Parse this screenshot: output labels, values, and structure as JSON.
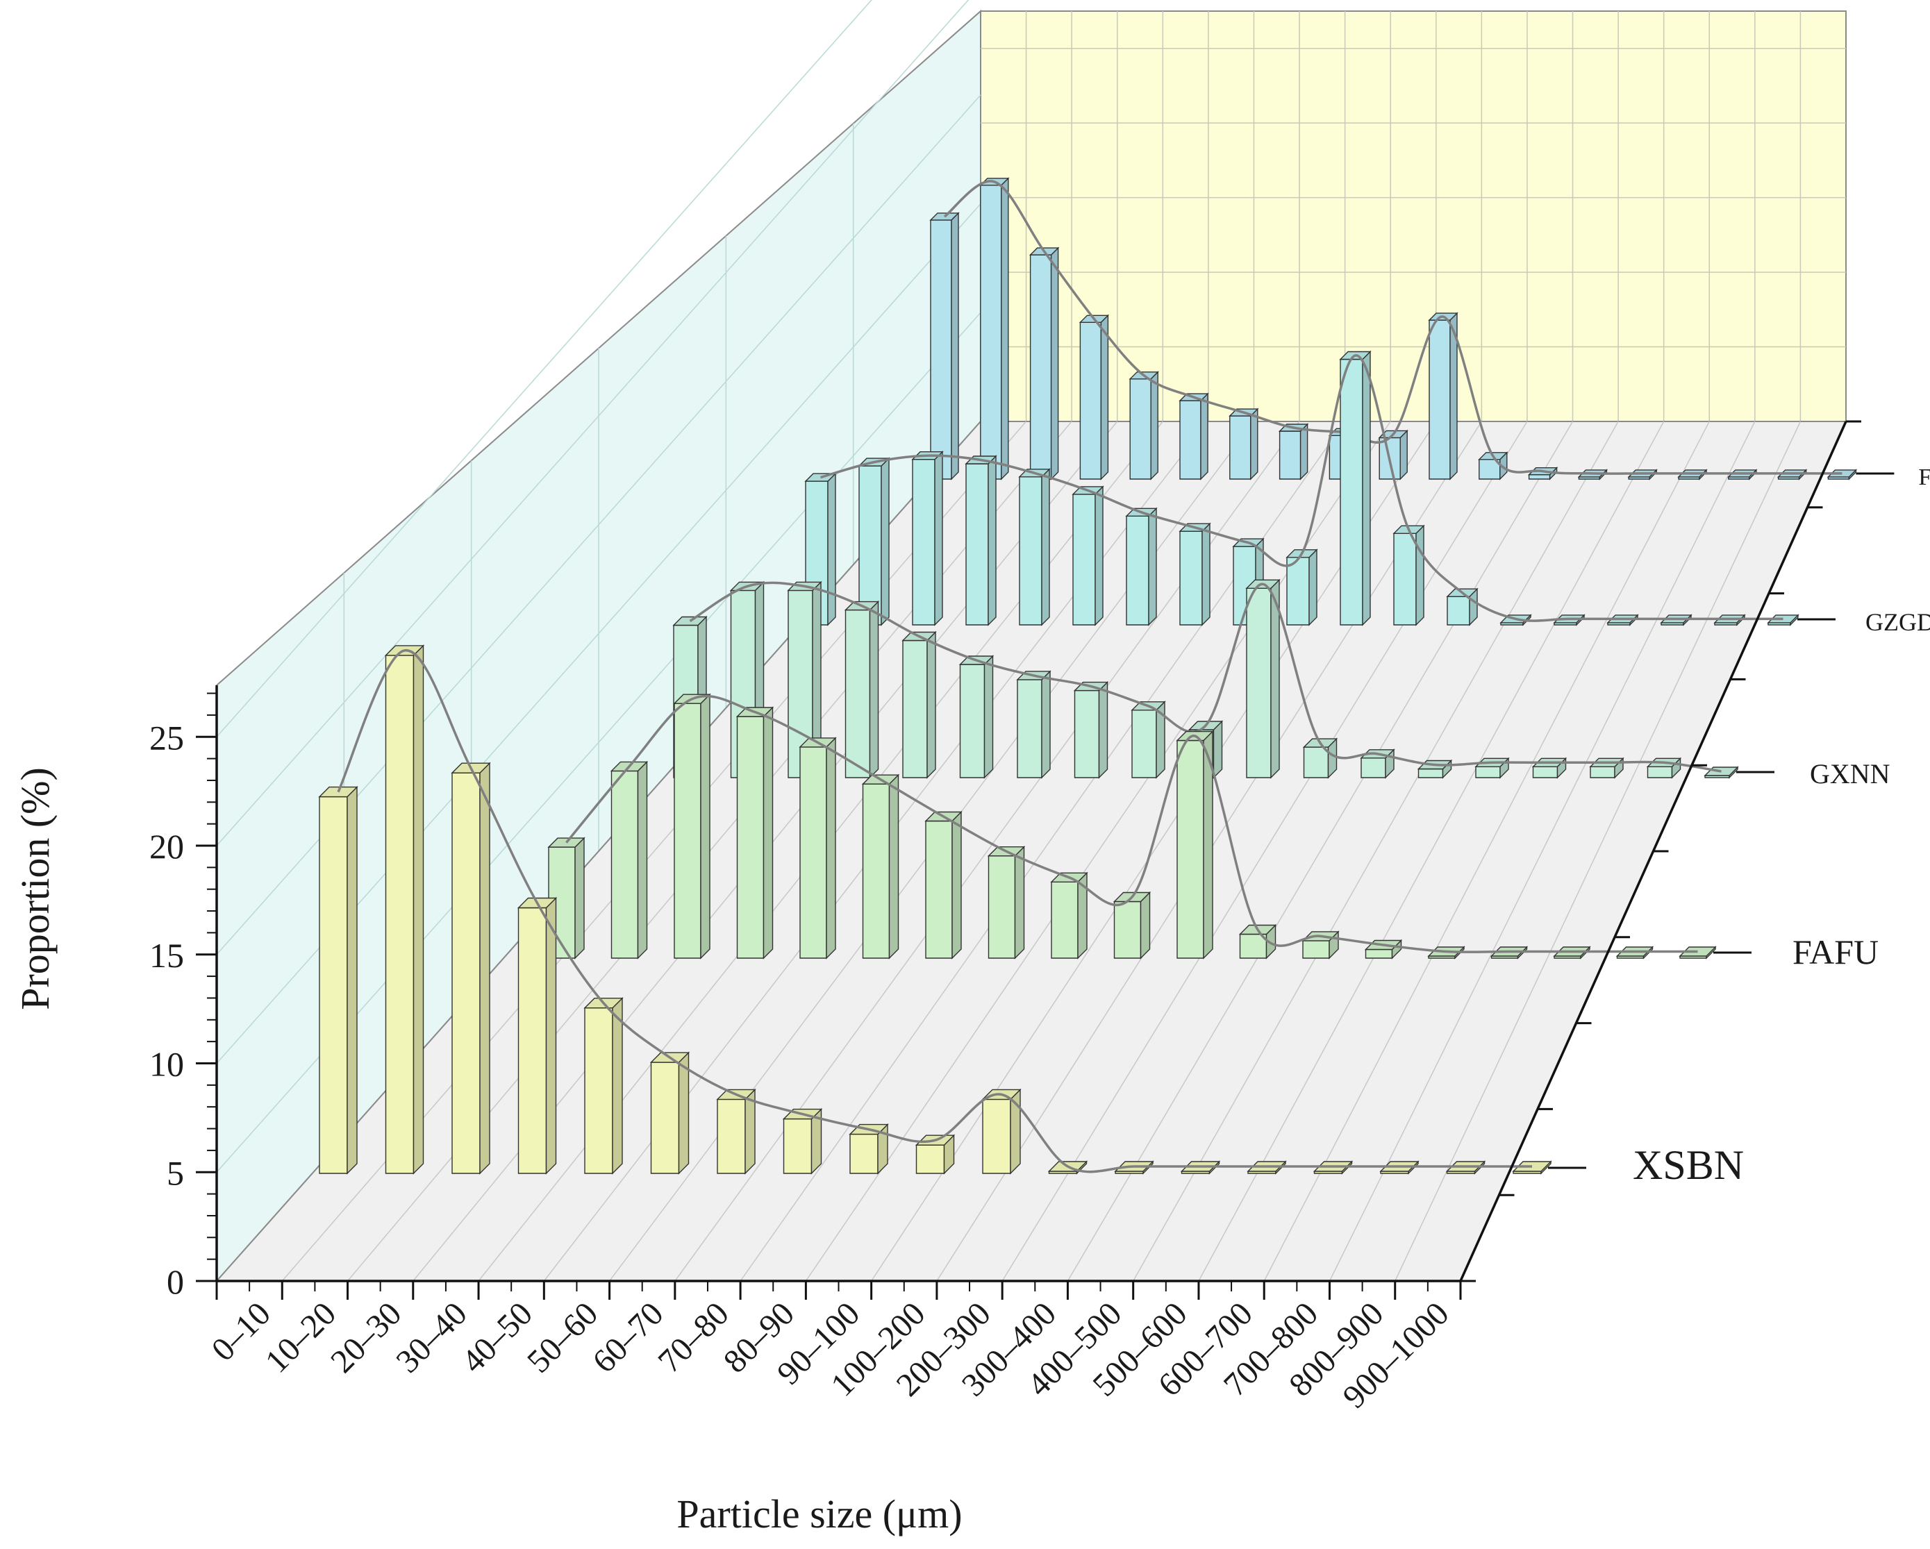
{
  "chart_data": {
    "type": "bar",
    "subtype": "3d-walls",
    "xlabel": "Particle size (μm)",
    "ylabel": "Proportion (%)",
    "ylim": [
      0,
      27
    ],
    "yticks": [
      0,
      5,
      10,
      15,
      20,
      25
    ],
    "grid": true,
    "smooth_line_overlay": true,
    "categories": [
      "0–10",
      "10–20",
      "20–30",
      "30–40",
      "40–50",
      "50–60",
      "60–70",
      "70–80",
      "80–90",
      "90–100",
      "100–200",
      "200–300",
      "300–400",
      "400–500",
      "500–600",
      "600–700",
      "700–800",
      "800–900",
      "900–1000"
    ],
    "series": [
      {
        "name": "XSBN",
        "color": "#f1f6b8",
        "values": [
          17.3,
          23.8,
          18.4,
          12.2,
          7.6,
          5.1,
          3.4,
          2.5,
          1.8,
          1.3,
          3.4,
          0,
          0,
          0,
          0,
          0,
          0,
          0,
          0
        ]
      },
      {
        "name": "FAFU",
        "color": "#cdefc8",
        "values": [
          5.1,
          8.6,
          11.7,
          11.1,
          9.7,
          8.0,
          6.3,
          4.7,
          3.5,
          2.6,
          10.0,
          1.1,
          0.8,
          0.4,
          0,
          0,
          0,
          0,
          0
        ]
      },
      {
        "name": "GXNN",
        "color": "#c5eedb",
        "values": [
          7.0,
          8.6,
          8.6,
          7.7,
          6.3,
          5.2,
          4.5,
          4.0,
          3.1,
          2.2,
          8.7,
          1.4,
          0.9,
          0.4,
          0.5,
          0.5,
          0.5,
          0.5,
          0
        ]
      },
      {
        "name": "GZGD",
        "color": "#b8ece9",
        "values": [
          6.6,
          7.3,
          7.6,
          7.4,
          6.8,
          6.0,
          5.0,
          4.3,
          3.6,
          3.1,
          12.2,
          4.2,
          1.3,
          0.1,
          0.1,
          0.1,
          0.1,
          0.1,
          0.1
        ]
      },
      {
        "name": "FJFZ",
        "color": "#b4e3ee",
        "values": [
          11.9,
          13.5,
          10.3,
          7.2,
          4.6,
          3.6,
          2.9,
          2.2,
          2.0,
          1.9,
          7.3,
          0.9,
          0.2,
          0.1,
          0.1,
          0.1,
          0.1,
          0.1,
          0.1
        ]
      }
    ]
  }
}
